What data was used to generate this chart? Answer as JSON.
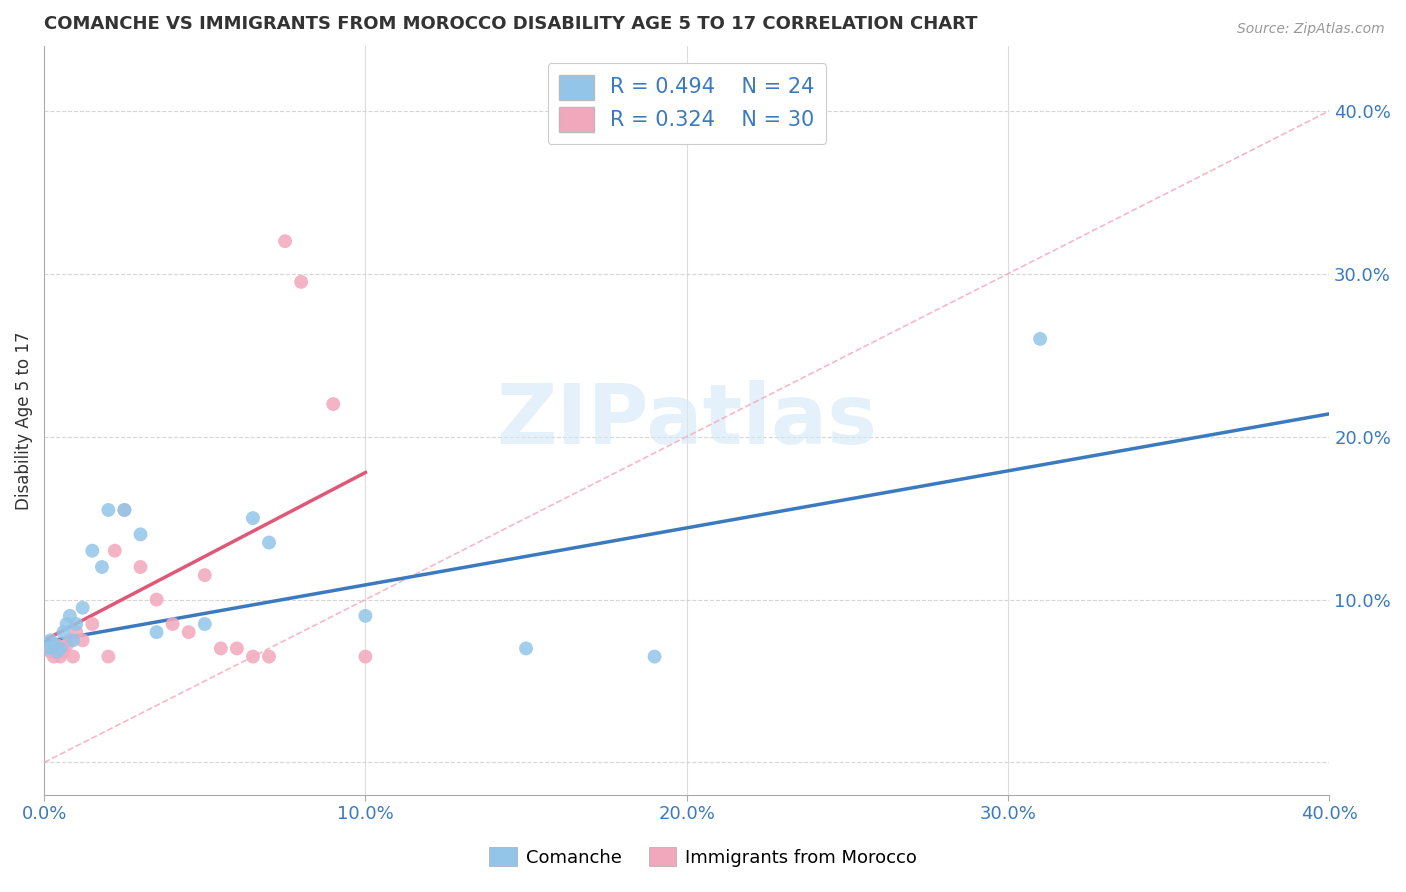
{
  "title": "COMANCHE VS IMMIGRANTS FROM MOROCCO DISABILITY AGE 5 TO 17 CORRELATION CHART",
  "source_text": "Source: ZipAtlas.com",
  "ylabel": "Disability Age 5 to 17",
  "xlim": [
    0.0,
    0.4
  ],
  "ylim": [
    -0.02,
    0.44
  ],
  "xticks": [
    0.0,
    0.1,
    0.2,
    0.3,
    0.4
  ],
  "yticks": [
    0.0,
    0.1,
    0.2,
    0.3,
    0.4
  ],
  "xtick_labels": [
    "0.0%",
    "10.0%",
    "20.0%",
    "30.0%",
    "40.0%"
  ],
  "ytick_labels": [
    "",
    "10.0%",
    "20.0%",
    "30.0%",
    "40.0%"
  ],
  "blue_color": "#92C5E8",
  "pink_color": "#F2A8BC",
  "blue_line_color": "#3B7ABF",
  "pink_line_color": "#E05878",
  "diag_line_color": "#F2A8BC",
  "watermark_color": "#D4E9F7",
  "legend_R_blue": "R = 0.494",
  "legend_N_blue": "N = 24",
  "legend_R_pink": "R = 0.324",
  "legend_N_pink": "N = 30",
  "comanche_x": [
    0.001,
    0.002,
    0.003,
    0.004,
    0.005,
    0.006,
    0.007,
    0.008,
    0.009,
    0.01,
    0.012,
    0.015,
    0.018,
    0.02,
    0.025,
    0.03,
    0.035,
    0.05,
    0.065,
    0.07,
    0.1,
    0.15,
    0.19,
    0.31
  ],
  "comanche_y": [
    0.07,
    0.075,
    0.072,
    0.068,
    0.07,
    0.08,
    0.085,
    0.09,
    0.075,
    0.085,
    0.095,
    0.13,
    0.12,
    0.155,
    0.155,
    0.14,
    0.08,
    0.085,
    0.15,
    0.135,
    0.09,
    0.07,
    0.065,
    0.26
  ],
  "morocco_x": [
    0.001,
    0.002,
    0.003,
    0.003,
    0.004,
    0.005,
    0.005,
    0.006,
    0.007,
    0.008,
    0.009,
    0.01,
    0.012,
    0.015,
    0.02,
    0.022,
    0.025,
    0.03,
    0.035,
    0.04,
    0.045,
    0.05,
    0.055,
    0.06,
    0.065,
    0.07,
    0.075,
    0.08,
    0.09,
    0.1
  ],
  "morocco_y": [
    0.07,
    0.068,
    0.07,
    0.065,
    0.072,
    0.07,
    0.065,
    0.068,
    0.072,
    0.075,
    0.065,
    0.08,
    0.075,
    0.085,
    0.065,
    0.13,
    0.155,
    0.12,
    0.1,
    0.085,
    0.08,
    0.115,
    0.07,
    0.07,
    0.065,
    0.065,
    0.32,
    0.295,
    0.22,
    0.065
  ],
  "blue_trend_x": [
    0.0,
    0.4
  ],
  "blue_trend_y": [
    0.074,
    0.214
  ],
  "pink_trend_x": [
    0.001,
    0.1
  ],
  "pink_trend_y": [
    0.076,
    0.178
  ]
}
